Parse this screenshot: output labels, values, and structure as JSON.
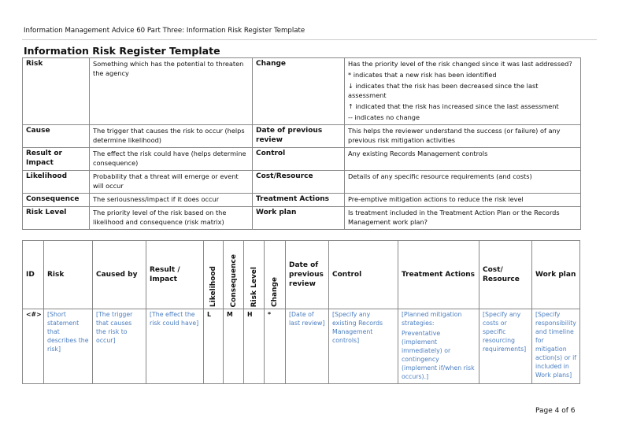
{
  "header": "Information Management Advice 60 Part Three: Information Risk Register Template",
  "title": "Information Risk Register Template",
  "glossary": [
    {
      "term": "Risk",
      "desc": "Something which has the potential to threaten the agency",
      "term2": "Change",
      "desc2": [
        "Has the priority level of the risk changed since it was last addressed?",
        "* indicates that a new risk has been identified",
        "↓ indicates that the risk has been decreased since the last assessment",
        "↑ indicated that the risk has increased since the last assessment",
        "-- indicates no change"
      ]
    },
    {
      "term": "Cause",
      "desc": "The trigger that causes the risk to occur (helps determine likelihood)",
      "term2": "Date of previous review",
      "desc2": [
        "This helps the reviewer understand the success (or failure) of any previous risk mitigation activities"
      ]
    },
    {
      "term": "Result or Impact",
      "desc": "The effect the risk could have (helps determine consequence)",
      "term2": "Control",
      "desc2": [
        "Any existing Records Management controls"
      ]
    },
    {
      "term": "Likelihood",
      "desc": "Probability that a threat will emerge or event will occur",
      "term2": "Cost/Resource",
      "desc2": [
        "Details of any specific resource requirements (and costs)"
      ]
    },
    {
      "term": "Consequence",
      "desc": "The seriousness/impact if it does occur",
      "term2": "Treatment Actions",
      "desc2": [
        "Pre-emptive mitigation actions to reduce the risk level"
      ]
    },
    {
      "term": "Risk Level",
      "desc": "The priority level of the risk based on the likelihood and consequence (risk matrix)",
      "term2": "Work plan",
      "desc2": [
        "Is treatment included in the Treatment Action Plan or the Records Management work plan?"
      ]
    }
  ],
  "register": {
    "headers": [
      "ID",
      "Risk",
      "Caused by",
      "Result / Impact",
      "Likelihood",
      "Consequence",
      "Risk Level",
      "Change",
      "Date of previous review",
      "Control",
      "Treatment Actions",
      "Cost/ Resource",
      "Work plan"
    ],
    "row": [
      "<#>",
      "[Short statement that describes the risk]",
      "[The trigger that causes the risk to occur]",
      "[The effect the risk could have]",
      "L",
      "M",
      "H",
      "*",
      "[Date of last review]",
      "[Specify any existing Records Management controls]",
      "[Planned mitigation strategies:",
      "[Specify any costs or specific resourcing requirements]",
      "[Specify responsibility and timeline for mitigation action(s) or if included in Work plans]"
    ],
    "treatment_extra": "Preventative (implement immediately) or contingency (implement if/when risk occurs).]",
    "placeholder_color": "#4a7dbf"
  },
  "footer": "Page 4 of 6"
}
